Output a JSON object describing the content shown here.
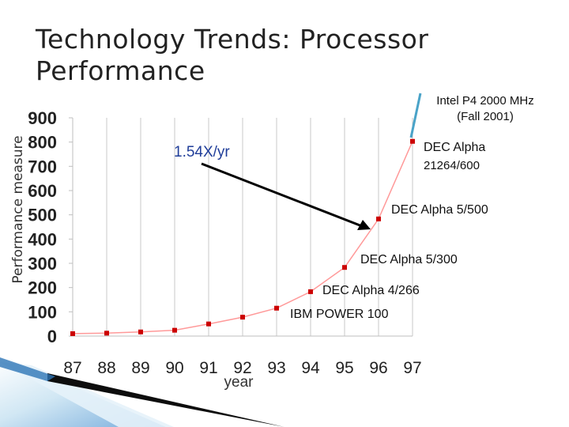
{
  "slide": {
    "title": "Technology Trends: Processor Performance"
  },
  "colors": {
    "series": "#cc0000",
    "curve": "#ff9999",
    "growth_arrow": "#000000",
    "growth_label": "#1f3d99",
    "p4_line": "#4aa3c8",
    "decoration": "#5b9bd5"
  },
  "chart_data": {
    "type": "line",
    "title": "",
    "xlabel": "year",
    "ylabel": "Performance measure",
    "x": [
      "87",
      "88",
      "89",
      "90",
      "91",
      "92",
      "93",
      "94",
      "95",
      "96",
      "97"
    ],
    "ylim": [
      0,
      900
    ],
    "yticks": [
      "0",
      "100",
      "200",
      "300",
      "400",
      "500",
      "600",
      "700",
      "800",
      "900"
    ],
    "grid": "vertical",
    "series": [
      {
        "values": [
          [
            87,
            10
          ],
          [
            88,
            12
          ],
          [
            89,
            17
          ],
          [
            90,
            24
          ],
          [
            91,
            50
          ],
          [
            92,
            78
          ],
          [
            93,
            115
          ],
          [
            94,
            183
          ],
          [
            95,
            283
          ],
          [
            96,
            483
          ],
          [
            97,
            803
          ]
        ]
      }
    ],
    "annotations": {
      "growth_rate": "1.54X/yr",
      "intel_p4_line1": "Intel P4 2000 MHz",
      "intel_p4_line2": "(Fall 2001)",
      "dec_21264_line1": "DEC Alpha",
      "dec_21264_line2": "21264/600",
      "dec_5_500": "DEC Alpha 5/500",
      "dec_5_300": "DEC Alpha 5/300",
      "dec_4_266": "DEC Alpha 4/266",
      "ibm_power": "IBM POWER 100"
    }
  }
}
